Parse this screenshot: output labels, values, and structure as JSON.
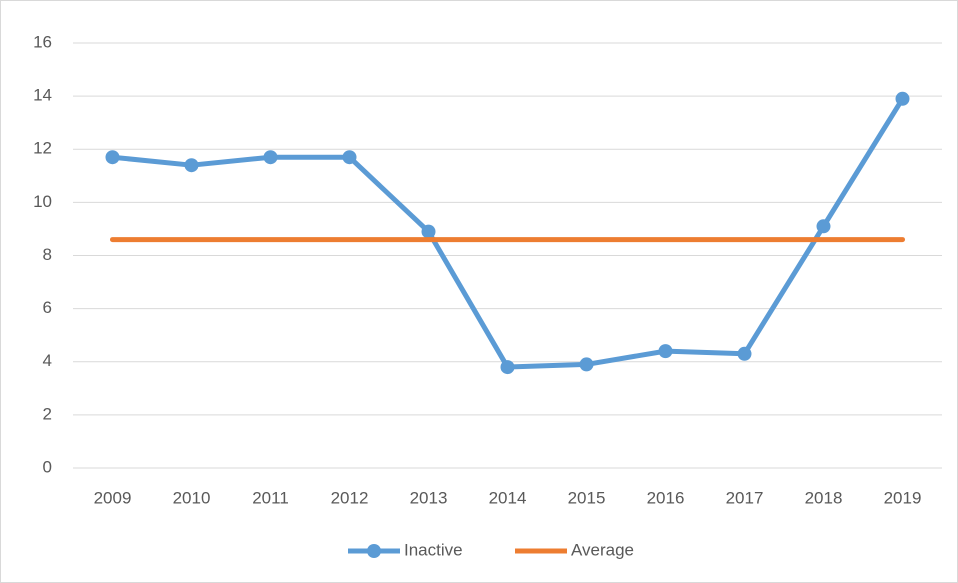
{
  "chart_data": {
    "type": "line",
    "categories": [
      "2009",
      "2010",
      "2011",
      "2012",
      "2013",
      "2014",
      "2015",
      "2016",
      "2017",
      "2018",
      "2019"
    ],
    "series": [
      {
        "name": "Inactive",
        "color": "#5b9bd5",
        "marker": true,
        "values": [
          11.7,
          11.4,
          11.7,
          11.7,
          8.9,
          3.8,
          3.9,
          4.4,
          4.3,
          9.1,
          13.9
        ]
      },
      {
        "name": "Average",
        "color": "#ed7d31",
        "marker": false,
        "values": [
          8.6,
          8.6,
          8.6,
          8.6,
          8.6,
          8.6,
          8.6,
          8.6,
          8.6,
          8.6,
          8.6
        ]
      }
    ],
    "ylim": [
      0,
      16
    ],
    "yticks": [
      0,
      2,
      4,
      6,
      8,
      10,
      12,
      14,
      16
    ],
    "grid": true,
    "legend": "bottom"
  }
}
